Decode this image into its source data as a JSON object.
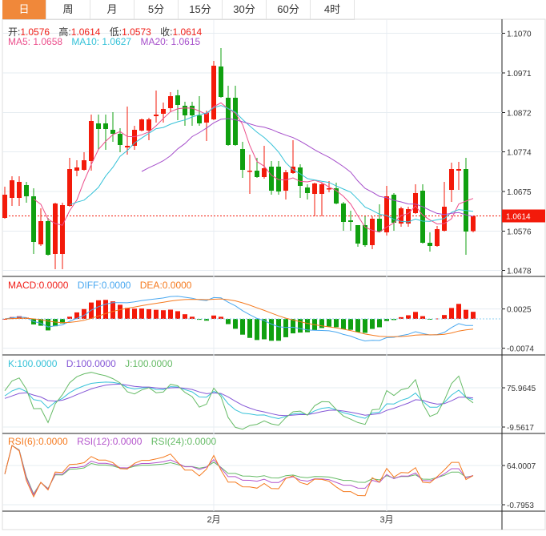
{
  "tabs": [
    "日",
    "周",
    "月",
    "5分",
    "15分",
    "30分",
    "60分",
    "4时"
  ],
  "active_tab": 0,
  "ohlc_legend": {
    "open_label": "开:",
    "open": "1.0576",
    "high_label": "高:",
    "high": "1.0614",
    "low_label": "低:",
    "low": "1.0573",
    "close_label": "收:",
    "close": "1.0614"
  },
  "ma_legend": {
    "ma5": "MA5: 1.0658",
    "ma10": "MA10: 1.0627",
    "ma20": "MA20: 1.0615"
  },
  "macd_legend": {
    "macd": "MACD:0.0000",
    "diff": "DIFF:0.0000",
    "dea": "DEA:0.0000"
  },
  "kdj_legend": {
    "k": "K:100.0000",
    "d": "D:100.0000",
    "j": "J:100.0000"
  },
  "rsi_legend": {
    "rsi6": "RSI(6):0.0000",
    "rsi12": "RSI(12):0.0000",
    "rsi24": "RSI(24):0.0000"
  },
  "current_price": "1.0614",
  "colors": {
    "up": "#f31a0a",
    "down": "#10a010",
    "ma5": "#ec4f8c",
    "ma10": "#36c2d8",
    "ma20": "#a64fcb",
    "diff": "#4aa8f0",
    "dea": "#f57a1f",
    "k": "#36c2d8",
    "d": "#8456d6",
    "j": "#66bb66",
    "rsi6": "#f57a1f",
    "rsi12": "#b455cc",
    "rsi24": "#66bb66",
    "active_tab": "#f0883a"
  },
  "chart_data": {
    "type": "candlestick",
    "price_ticks": [
      "1.1070",
      "1.0971",
      "1.0872",
      "1.0774",
      "1.0675",
      "1.0576",
      "1.0478"
    ],
    "macd_ticks": [
      "0.0025",
      "-0.0074"
    ],
    "kdj_ticks": [
      "75.9645",
      "-9.5617"
    ],
    "rsi_ticks": [
      "64.0007",
      "-0.7953"
    ],
    "x_labels": [
      {
        "label": "2月",
        "index": 29
      },
      {
        "label": "3月",
        "index": 53
      }
    ],
    "ohlc": [
      [
        1.0609,
        1.0687,
        1.0607,
        1.0667
      ],
      [
        1.0659,
        1.0713,
        1.0639,
        1.0703
      ],
      [
        1.0659,
        1.0713,
        1.0639,
        1.0699
      ],
      [
        1.0691,
        1.0699,
        1.0647,
        1.0663
      ],
      [
        1.0663,
        1.0683,
        1.0519,
        1.0549
      ],
      [
        1.0543,
        1.0633,
        1.0539,
        1.0601
      ],
      [
        1.0601,
        1.0609,
        1.0515,
        1.0517
      ],
      [
        1.0519,
        1.0647,
        1.0481,
        1.0645
      ],
      [
        1.0519,
        1.0647,
        1.0481,
        1.0641
      ],
      [
        1.0639,
        1.0759,
        1.0637,
        1.0731
      ],
      [
        1.0727,
        1.0753,
        1.0713,
        1.0735
      ],
      [
        1.0729,
        1.0773,
        1.0727,
        1.0753
      ],
      [
        1.0751,
        1.0867,
        1.0727,
        1.0851
      ],
      [
        1.0845,
        1.0867,
        1.0779,
        1.0831
      ],
      [
        1.0845,
        1.0867,
        1.0779,
        1.0831
      ],
      [
        1.0829,
        1.0873,
        1.0799,
        1.0819
      ],
      [
        1.0819,
        1.0833,
        1.0773,
        1.0791
      ],
      [
        1.0785,
        1.0887,
        1.0767,
        1.0789
      ],
      [
        1.0789,
        1.0839,
        1.0779,
        1.0829
      ],
      [
        1.0827,
        1.0857,
        1.0825,
        1.0855
      ],
      [
        1.0827,
        1.0859,
        1.0803,
        1.0855
      ],
      [
        1.0863,
        1.0927,
        1.0847,
        1.0867
      ],
      [
        1.0869,
        1.0897,
        1.0847,
        1.0881
      ],
      [
        1.0883,
        1.0923,
        1.0873,
        1.0913
      ],
      [
        1.0915,
        1.0929,
        1.0853,
        1.0891
      ],
      [
        1.0889,
        1.0899,
        1.0839,
        1.0865
      ],
      [
        1.0889,
        1.0899,
        1.0839,
        1.0865
      ],
      [
        1.0865,
        1.0913,
        1.0839,
        1.0845
      ],
      [
        1.0847,
        1.0877,
        1.0801,
        1.0871
      ],
      [
        1.0855,
        1.1001,
        1.0853,
        1.0989
      ],
      [
        1.0987,
        1.1033,
        1.0909,
        1.0911
      ],
      [
        1.0909,
        1.0939,
        1.0789,
        1.0791
      ],
      [
        1.0909,
        1.0939,
        1.0789,
        1.0791
      ],
      [
        1.0781,
        1.0799,
        1.0709,
        1.0729
      ],
      [
        1.0725,
        1.0767,
        1.0669,
        1.0727
      ],
      [
        1.0727,
        1.0759,
        1.0709,
        1.0711
      ],
      [
        1.0711,
        1.0789,
        1.0707,
        1.0733
      ],
      [
        1.0737,
        1.0751,
        1.0667,
        1.0677
      ],
      [
        1.0737,
        1.0751,
        1.0667,
        1.0675
      ],
      [
        1.0677,
        1.0729,
        1.0655,
        1.0723
      ],
      [
        1.0721,
        1.0803,
        1.0719,
        1.0737
      ],
      [
        1.0735,
        1.0743,
        1.0659,
        1.0689
      ],
      [
        1.0685,
        1.0693,
        1.0655,
        1.0671
      ],
      [
        1.0669,
        1.0697,
        1.0613,
        1.0695
      ],
      [
        1.0669,
        1.0697,
        1.0613,
        1.0693
      ],
      [
        1.0681,
        1.0701,
        1.0673,
        1.0683
      ],
      [
        1.0683,
        1.0697,
        1.0643,
        1.0645
      ],
      [
        1.0645,
        1.0649,
        1.0577,
        1.0599
      ],
      [
        1.0603,
        1.0627,
        1.0577,
        1.0599
      ],
      [
        1.0591,
        1.0591,
        1.0537,
        1.0545
      ],
      [
        1.0591,
        1.0613,
        1.0537,
        1.0541
      ],
      [
        1.0541,
        1.0613,
        1.0531,
        1.0607
      ],
      [
        1.0607,
        1.0643,
        1.0573,
        1.0575
      ],
      [
        1.0573,
        1.0689,
        1.0565,
        1.0663
      ],
      [
        1.0667,
        1.0671,
        1.0577,
        1.0597
      ],
      [
        1.0595,
        1.0637,
        1.0587,
        1.0633
      ],
      [
        1.0595,
        1.0637,
        1.0587,
        1.0631
      ],
      [
        1.0621,
        1.0693,
        1.0619,
        1.0671
      ],
      [
        1.0677,
        1.0693,
        1.0545,
        1.0547
      ],
      [
        1.0547,
        1.0573,
        1.0525,
        1.0539
      ],
      [
        1.0539,
        1.0589,
        1.0537,
        1.0581
      ],
      [
        1.0577,
        1.0699,
        1.0575,
        1.0637
      ],
      [
        1.0679,
        1.0747,
        1.0649,
        1.0731
      ],
      [
        1.0727,
        1.0749,
        1.0679,
        1.0731
      ],
      [
        1.0731,
        1.0759,
        1.0517,
        1.0575
      ],
      [
        1.0576,
        1.0614,
        1.0573,
        1.0614
      ]
    ]
  }
}
